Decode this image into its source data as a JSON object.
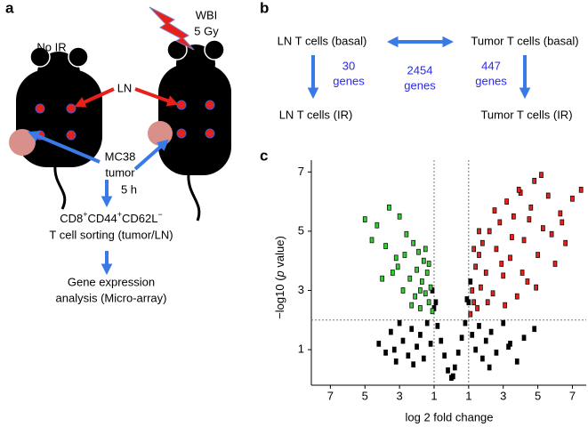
{
  "panels": {
    "a": {
      "label": "a",
      "no_ir": "No IR",
      "wbi": [
        "WBI",
        "5 Gy"
      ],
      "ln": "LN",
      "tumor": [
        "MC38",
        "tumor"
      ],
      "time": "5 h",
      "marker": [
        "CD8",
        "+",
        "CD44",
        "+",
        "CD62L",
        "−"
      ],
      "sorting": "T cell sorting (tumor/LN)",
      "analysis": [
        "Gene expression",
        "analysis (Micro-array)"
      ]
    },
    "b": {
      "label": "b",
      "ln_basal": "LN T cells (basal)",
      "tumor_basal": "Tumor T cells (basal)",
      "ln_ir": "LN T cells (IR)",
      "tumor_ir": "Tumor T cells (IR)",
      "ln_genes": [
        "30",
        "genes"
      ],
      "basal_genes": [
        "2454",
        "genes"
      ],
      "tumor_genes": [
        "447",
        "genes"
      ]
    }
  },
  "chart_data": {
    "type": "scatter",
    "label": "c",
    "x_label": "log 2 fold change",
    "y_label": [
      "−log10 (",
      "p",
      " value)"
    ],
    "xlim": [
      -8.1,
      7.8
    ],
    "ylim": [
      -0.2,
      7.4
    ],
    "xticks": [
      {
        "value": -7,
        "label": "7"
      },
      {
        "value": -5,
        "label": "5"
      },
      {
        "value": -3,
        "label": "3"
      },
      {
        "value": -1,
        "label": "1"
      },
      1,
      3,
      5,
      7
    ],
    "yticks": [
      1,
      3,
      5,
      7
    ],
    "reference_lines": {
      "x": [
        -1,
        1
      ],
      "y": 2
    },
    "series": [
      {
        "color": "#000000",
        "x": [
          -4.2,
          -3.8,
          -3.5,
          -3.2,
          -3,
          -2.8,
          -2.5,
          -2.3,
          -2,
          -1.8,
          -1.6,
          -1.4,
          -1.2,
          -1,
          -0.8,
          -0.6,
          -0.4,
          -0.2,
          0,
          0.2,
          0.4,
          0.6,
          0.8,
          1,
          1.2,
          1.4,
          1.6,
          1.8,
          2,
          2.3,
          2.6,
          3,
          3.4,
          3.8,
          4.2,
          4.8,
          -1.1,
          -0.9,
          0.9,
          1.1,
          -2.2,
          2.2,
          -3.3,
          3.3,
          0.1
        ],
        "y": [
          1.2,
          0.9,
          1.6,
          0.6,
          1.9,
          1.3,
          0.8,
          1.7,
          1.1,
          1.5,
          0.7,
          1.9,
          1.2,
          2.4,
          1.8,
          1.3,
          0.8,
          0.3,
          0.05,
          0.4,
          0.9,
          1.4,
          1.9,
          2.6,
          1.5,
          1.0,
          1.8,
          0.7,
          1.3,
          1.6,
          0.9,
          1.9,
          1.2,
          0.6,
          1.4,
          1.7,
          3.0,
          2.6,
          2.7,
          3.3,
          0.5,
          0.4,
          1.0,
          1.1,
          0.1
        ]
      },
      {
        "color": "#33cc33",
        "x": [
          -1.1,
          -1.2,
          -1.3,
          -1.4,
          -1.5,
          -1.6,
          -1.7,
          -1.8,
          -1.9,
          -2,
          -2.1,
          -2.2,
          -2.4,
          -2.6,
          -2.8,
          -3,
          -3.2,
          -3.4,
          -3.6,
          -3.8,
          -4,
          -4.3,
          -4.6,
          -5,
          -1.3,
          -1.5,
          -1.8,
          -2.3,
          -2.7,
          -3.1
        ],
        "y": [
          2.3,
          3.1,
          2.6,
          3.6,
          2.9,
          4.0,
          3.3,
          2.4,
          4.3,
          3.7,
          2.8,
          4.6,
          3.4,
          4.9,
          3.0,
          5.5,
          4.1,
          3.6,
          5.8,
          4.5,
          3.4,
          5.2,
          4.7,
          5.4,
          3.9,
          4.4,
          3.0,
          2.5,
          4.2,
          3.8
        ]
      },
      {
        "color": "#e8201a",
        "x": [
          1.1,
          1.2,
          1.3,
          1.4,
          1.5,
          1.6,
          1.7,
          1.8,
          2,
          2.2,
          2.4,
          2.6,
          2.8,
          3,
          3.2,
          3.4,
          3.6,
          3.8,
          4,
          4.2,
          4.4,
          4.6,
          4.8,
          5,
          5.3,
          5.6,
          6,
          6.3,
          6.6,
          7,
          7.5,
          1.3,
          1.6,
          2.1,
          2.5,
          3.1,
          3.5,
          4.1,
          4.5,
          5.2,
          5.8,
          6.4,
          2.9,
          3.9,
          4.9
        ],
        "y": [
          2.2,
          3.0,
          2.6,
          3.8,
          2.4,
          4.2,
          3.1,
          4.6,
          3.6,
          5.0,
          2.9,
          4.4,
          5.3,
          3.5,
          6.0,
          4.1,
          5.5,
          2.8,
          6.3,
          4.7,
          3.3,
          5.8,
          6.7,
          4.2,
          5.1,
          6.2,
          3.9,
          5.6,
          4.6,
          6.1,
          6.4,
          4.4,
          5.0,
          2.6,
          5.7,
          2.5,
          4.8,
          3.6,
          5.4,
          6.9,
          4.9,
          5.3,
          3.9,
          6.4,
          3.1
        ]
      }
    ]
  }
}
